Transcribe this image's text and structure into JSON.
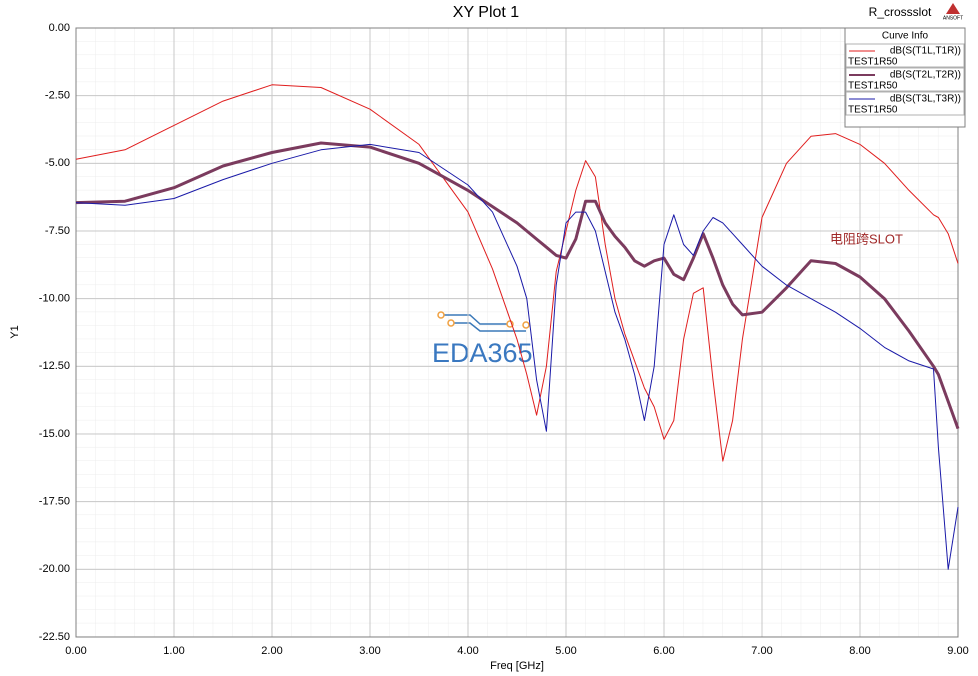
{
  "chart_data": {
    "type": "line",
    "title": "XY Plot 1",
    "design_name": "R_crossslot",
    "logo": "ANSOFT",
    "x_label": "Freq [GHz]",
    "y_label": "Y1",
    "legend_title": "Curve Info",
    "legend": "top-right",
    "annotation": "电阻跨SLOT",
    "watermark": "EDA365",
    "grid": true,
    "x": [
      0,
      0.5,
      1,
      1.5,
      2,
      2.5,
      3,
      3.5,
      4,
      4.25,
      4.5,
      4.6,
      4.7,
      4.8,
      4.9,
      5.0,
      5.1,
      5.2,
      5.3,
      5.4,
      5.5,
      5.6,
      5.7,
      5.8,
      5.9,
      6.0,
      6.1,
      6.2,
      6.3,
      6.4,
      6.5,
      6.6,
      6.7,
      6.8,
      7.0,
      7.25,
      7.5,
      7.75,
      8.0,
      8.25,
      8.5,
      8.75,
      8.8,
      8.9,
      9.0
    ],
    "series": [
      {
        "name": "dB(S(T1L,T1R))",
        "setup": "TEST1R50",
        "color": "#e01e1e",
        "width": 1,
        "values": [
          -4.85,
          -4.5,
          -3.6,
          -2.7,
          -2.1,
          -2.2,
          -3.0,
          -4.3,
          -6.8,
          -8.9,
          -11.5,
          -12.8,
          -14.3,
          -12.5,
          -9.0,
          -7.5,
          -6.0,
          -4.9,
          -5.5,
          -8.0,
          -10.0,
          -11.3,
          -12.3,
          -13.3,
          -14.0,
          -15.2,
          -14.5,
          -11.5,
          -9.8,
          -9.6,
          -13.0,
          -16.0,
          -14.5,
          -11.5,
          -7.0,
          -5.0,
          -4.0,
          -3.9,
          -4.3,
          -5.0,
          -6.0,
          -6.9,
          -7.0,
          -7.6,
          -8.7
        ]
      },
      {
        "name": "dB(S(T2L,T2R))",
        "setup": "TEST1R50",
        "color": "#7b3b5e",
        "width": 3,
        "values": [
          -6.45,
          -6.4,
          -5.9,
          -5.1,
          -4.6,
          -4.25,
          -4.4,
          -5.0,
          -6.0,
          -6.6,
          -7.2,
          -7.5,
          -7.8,
          -8.1,
          -8.4,
          -8.5,
          -7.8,
          -6.4,
          -6.4,
          -7.2,
          -7.7,
          -8.1,
          -8.6,
          -8.8,
          -8.6,
          -8.5,
          -9.1,
          -9.3,
          -8.5,
          -7.6,
          -8.5,
          -9.5,
          -10.2,
          -10.6,
          -10.5,
          -9.6,
          -8.6,
          -8.7,
          -9.2,
          -10.0,
          -11.2,
          -12.5,
          -12.8,
          -13.8,
          -14.8
        ]
      },
      {
        "name": "dB(S(T3L,T3R))",
        "setup": "TEST1R50",
        "color": "#1a1aa8",
        "width": 1,
        "values": [
          -6.45,
          -6.55,
          -6.3,
          -5.6,
          -5.0,
          -4.5,
          -4.3,
          -4.6,
          -5.8,
          -6.8,
          -8.8,
          -10.0,
          -13.0,
          -14.9,
          -9.5,
          -7.2,
          -6.8,
          -6.8,
          -7.5,
          -9.0,
          -10.5,
          -11.5,
          -12.8,
          -14.5,
          -12.5,
          -8.0,
          -6.9,
          -8.0,
          -8.4,
          -7.5,
          -7.0,
          -7.2,
          -7.6,
          -8.0,
          -8.8,
          -9.5,
          -10.0,
          -10.5,
          -11.1,
          -11.8,
          -12.3,
          -12.6,
          -15.5,
          -20.0,
          -17.7
        ]
      }
    ],
    "xlim": [
      0,
      9
    ],
    "ylim": [
      -22.5,
      0
    ],
    "xticks": [
      {
        "value": 0,
        "label": "0.00"
      },
      {
        "value": 1,
        "label": "1.00"
      },
      {
        "value": 2,
        "label": "2.00"
      },
      {
        "value": 3,
        "label": "3.00"
      },
      {
        "value": 4,
        "label": "4.00"
      },
      {
        "value": 5,
        "label": "5.00"
      },
      {
        "value": 6,
        "label": "6.00"
      },
      {
        "value": 7,
        "label": "7.00"
      },
      {
        "value": 8,
        "label": "8.00"
      },
      {
        "value": 9,
        "label": "9.00"
      }
    ],
    "yticks": [
      {
        "value": 0,
        "label": "0.00"
      },
      {
        "value": -2.5,
        "label": "-2.50"
      },
      {
        "value": -5,
        "label": "-5.00"
      },
      {
        "value": -7.5,
        "label": "-7.50"
      },
      {
        "value": -10,
        "label": "-10.00"
      },
      {
        "value": -12.5,
        "label": "-12.50"
      },
      {
        "value": -15,
        "label": "-15.00"
      },
      {
        "value": -17.5,
        "label": "-17.50"
      },
      {
        "value": -20,
        "label": "-20.00"
      },
      {
        "value": -22.5,
        "label": "-22.50"
      }
    ]
  }
}
